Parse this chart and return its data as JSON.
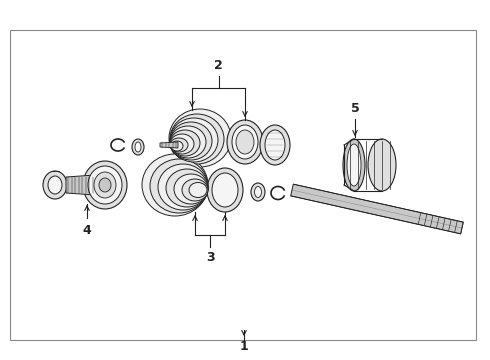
{
  "background_color": "#ffffff",
  "border_color": "#999999",
  "figure_width": 4.9,
  "figure_height": 3.6,
  "dpi": 100,
  "label_1": "1",
  "label_2": "2",
  "label_3": "3",
  "label_4": "4",
  "label_5": "5",
  "line_color": "#222222",
  "fill_light": "#f5f5f5",
  "fill_mid": "#e0e0e0",
  "fill_dark": "#c8c8c8"
}
